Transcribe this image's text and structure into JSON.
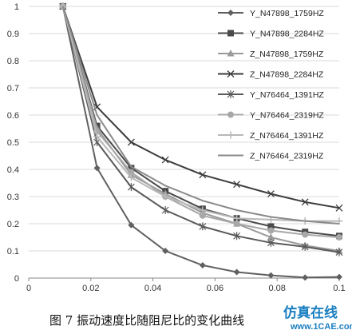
{
  "caption": "图 7  振动速度比随阻尼比的变化曲线",
  "watermark": {
    "main": "仿真在线",
    "sub": "www.1CAE.com"
  },
  "chart_data": {
    "type": "line",
    "title": "",
    "xlabel": "",
    "ylabel": "",
    "xlim": [
      0,
      0.1
    ],
    "ylim": [
      0,
      1
    ],
    "x_ticks": [
      "0",
      "0.02",
      "0.04",
      "0.06",
      "0.08",
      "0.1"
    ],
    "y_ticks": [
      "0",
      "0.1",
      "0.2",
      "0.3",
      "0.4",
      "0.5",
      "0.6",
      "0.7",
      "0.8",
      "0.9",
      "1"
    ],
    "grid": "horizontal",
    "legend_position": "right",
    "x": [
      0.011,
      0.022,
      0.033,
      0.044,
      0.056,
      0.067,
      0.078,
      0.089,
      0.1
    ],
    "series": [
      {
        "name": "Y_N47898_1759HZ",
        "color": "#606060",
        "marker": "diamond",
        "values": [
          1.0,
          0.405,
          0.195,
          0.1,
          0.047,
          0.022,
          0.01,
          0.002,
          0.004
        ]
      },
      {
        "name": "Y_N47898_2284HZ",
        "color": "#4a4a4a",
        "marker": "square",
        "values": [
          1.0,
          0.56,
          0.405,
          0.32,
          0.255,
          0.22,
          0.19,
          0.17,
          0.155
        ]
      },
      {
        "name": "Z_N47898_1759HZ",
        "color": "#9a9a9a",
        "marker": "triangle",
        "values": [
          1.0,
          0.55,
          0.38,
          0.31,
          0.24,
          0.2,
          0.15,
          0.12,
          0.1
        ]
      },
      {
        "name": "Z_N47898_2284HZ",
        "color": "#3c3c3c",
        "marker": "x",
        "values": [
          1.0,
          0.63,
          0.5,
          0.435,
          0.38,
          0.345,
          0.31,
          0.28,
          0.258
        ]
      },
      {
        "name": "Y_N76464_1391HZ",
        "color": "#5a5a5a",
        "marker": "star",
        "values": [
          1.0,
          0.5,
          0.335,
          0.25,
          0.19,
          0.155,
          0.13,
          0.115,
          0.095
        ]
      },
      {
        "name": "Y_N76464_2319HZ",
        "color": "#a8a8a8",
        "marker": "circle",
        "values": [
          1.0,
          0.54,
          0.39,
          0.3,
          0.23,
          0.2,
          0.175,
          0.16,
          0.15
        ]
      },
      {
        "name": "Z_N76464_1391HZ",
        "color": "#b8b8b8",
        "marker": "plus",
        "values": [
          1.0,
          0.52,
          0.37,
          0.3,
          0.25,
          0.22,
          0.215,
          0.21,
          0.21
        ]
      },
      {
        "name": "Z_N76464_2319HZ",
        "color": "#8a8a8a",
        "marker": "none",
        "values": [
          1.0,
          0.6,
          0.41,
          0.34,
          0.285,
          0.25,
          0.225,
          0.21,
          0.2
        ]
      }
    ]
  }
}
